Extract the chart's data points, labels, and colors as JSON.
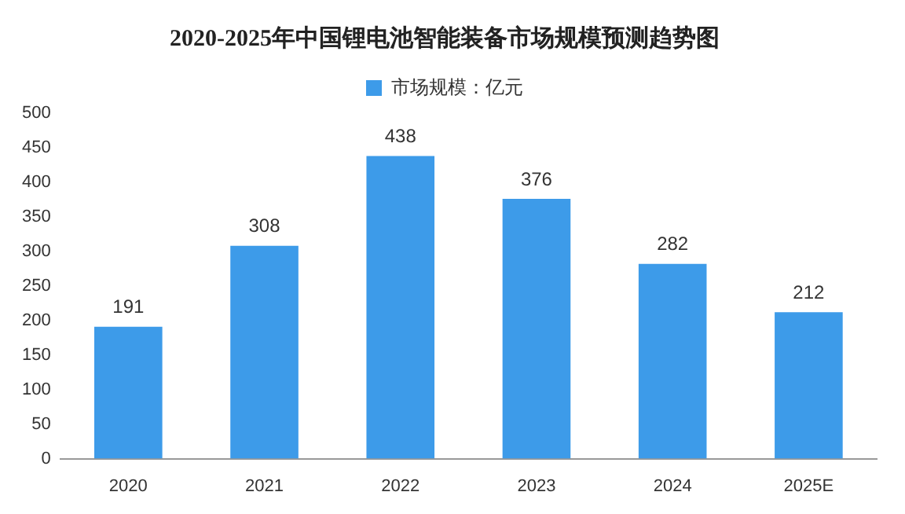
{
  "chart_data": {
    "type": "bar",
    "title": "2020-2025年中国锂电池智能装备市场规模预测趋势图",
    "categories": [
      "2020",
      "2021",
      "2022",
      "2023",
      "2024",
      "2025E"
    ],
    "series": [
      {
        "name": "市场规模：亿元",
        "color": "#3d9be9",
        "values": [
          191,
          308,
          438,
          376,
          282,
          212
        ]
      }
    ],
    "ylim": [
      0,
      500
    ],
    "yticks": [
      0,
      50,
      100,
      150,
      200,
      250,
      300,
      350,
      400,
      450,
      500
    ],
    "grid": false,
    "legend": "top",
    "data_labels": true
  }
}
